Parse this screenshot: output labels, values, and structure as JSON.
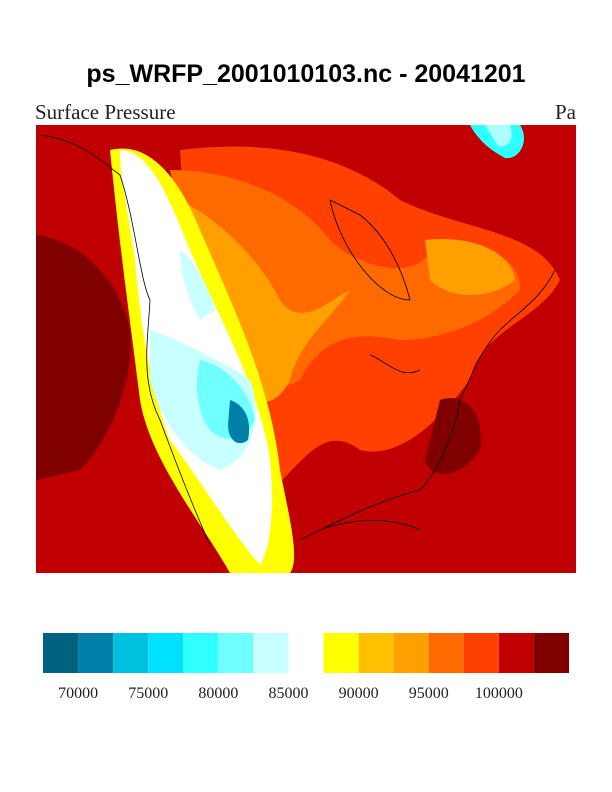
{
  "header": {
    "title": "ps_WRFP_2001010103.nc - 20041201",
    "left_string": "Surface Pressure",
    "right_string": "Pa"
  },
  "colorbar": {
    "colors": [
      "#006080",
      "#0080a8",
      "#00c0e0",
      "#00e0ff",
      "#30ffff",
      "#70ffff",
      "#c8ffff",
      "#ffffff",
      "#ffff00",
      "#ffc000",
      "#ffa000",
      "#ff6a00",
      "#ff4000",
      "#c00000",
      "#800000"
    ],
    "labels": [
      70000,
      75000,
      80000,
      85000,
      90000,
      95000,
      100000
    ]
  }
}
